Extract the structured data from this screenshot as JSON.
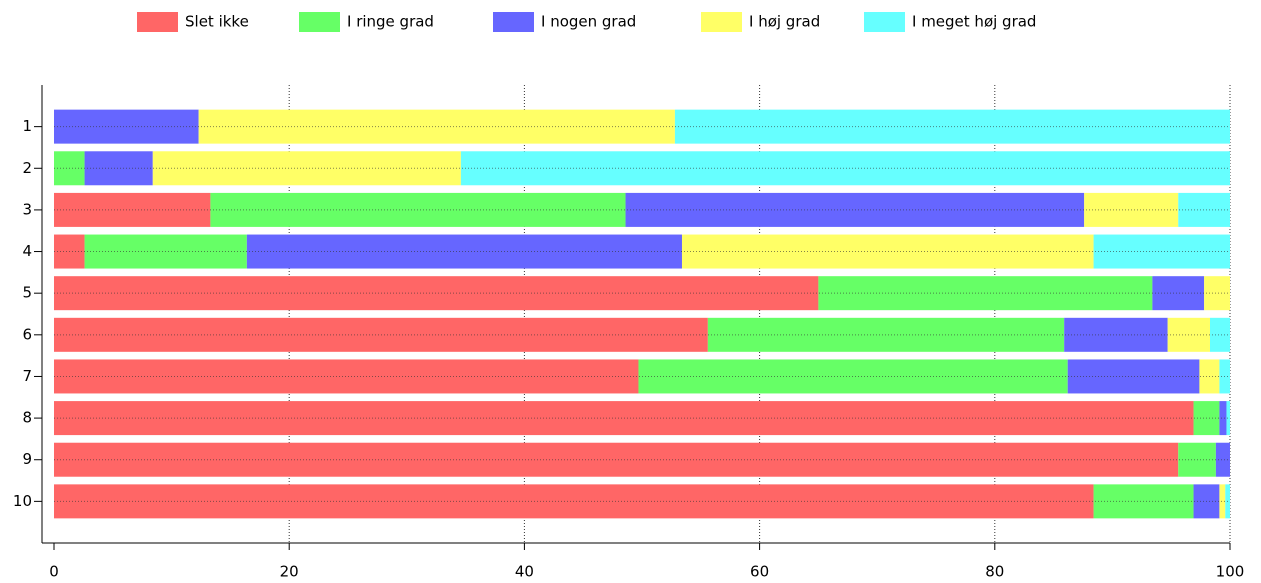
{
  "chart_data": {
    "type": "stacked_barh",
    "categories": [
      "1",
      "2",
      "3",
      "4",
      "5",
      "6",
      "7",
      "8",
      "9",
      "10"
    ],
    "series": [
      {
        "name": "Slet ikke",
        "color": "#ff6666",
        "values": [
          0,
          0,
          13.3,
          2.6,
          65.0,
          55.6,
          49.7,
          96.9,
          95.6,
          88.4
        ]
      },
      {
        "name": "I ringe grad",
        "color": "#66ff66",
        "values": [
          0,
          2.6,
          35.3,
          13.8,
          28.4,
          30.3,
          36.5,
          2.2,
          3.2,
          8.5
        ]
      },
      {
        "name": "I nogen grad",
        "color": "#6666ff",
        "values": [
          12.3,
          5.8,
          39.0,
          37.0,
          4.4,
          8.8,
          11.2,
          0.6,
          1.2,
          2.2
        ]
      },
      {
        "name": "I høj grad",
        "color": "#ffff66",
        "values": [
          40.5,
          26.2,
          8.0,
          35.0,
          2.2,
          3.6,
          1.7,
          0,
          0,
          0.5
        ]
      },
      {
        "name": "I meget høj grad",
        "color": "#66ffff",
        "values": [
          47.2,
          65.4,
          4.4,
          11.6,
          0,
          1.7,
          0.9,
          0.3,
          0,
          0.4
        ]
      }
    ],
    "xlim": [
      0,
      100
    ],
    "xticks": [
      0,
      20,
      40,
      60,
      80,
      100
    ],
    "grid": true,
    "legend": "top"
  }
}
